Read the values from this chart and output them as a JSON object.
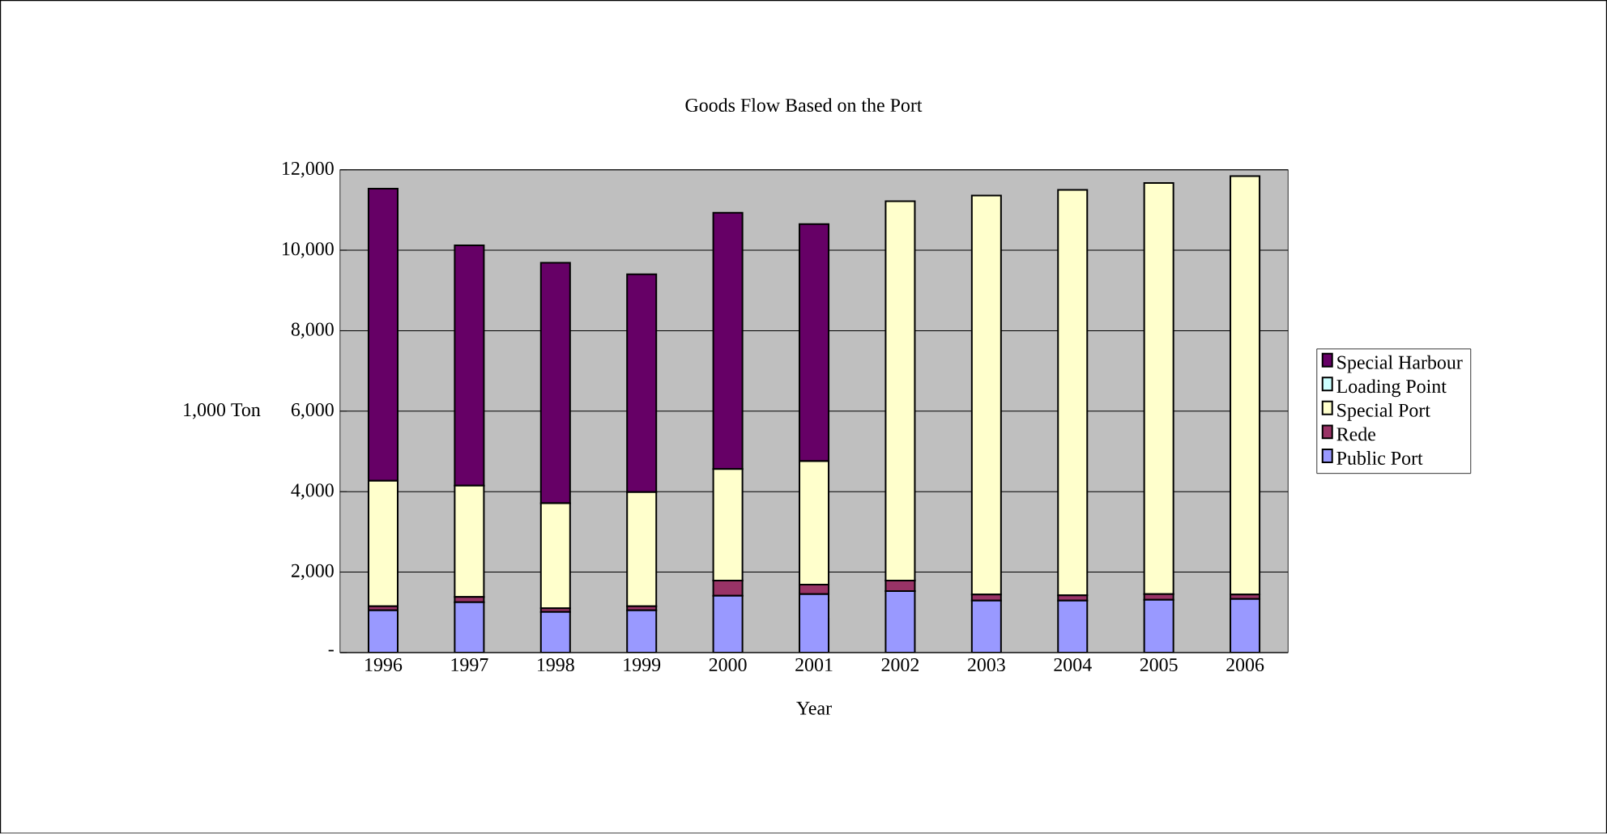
{
  "chart_data": {
    "type": "bar",
    "title": "Goods Flow Based on the Port",
    "xlabel": "Year",
    "ylabel": "1,000 Ton",
    "categories": [
      "1996",
      "1997",
      "1998",
      "1999",
      "2000",
      "2001",
      "2002",
      "2003",
      "2004",
      "2005",
      "2006"
    ],
    "stacked": true,
    "series": [
      {
        "name": "Public Port",
        "color": "#9999ff",
        "values": [
          1050,
          1250,
          1010,
          1050,
          1410,
          1450,
          1530,
          1290,
          1290,
          1310,
          1330
        ]
      },
      {
        "name": "Rede",
        "color": "#993366",
        "values": [
          100,
          130,
          90,
          100,
          380,
          240,
          260,
          150,
          130,
          140,
          110
        ]
      },
      {
        "name": "Special Port",
        "color": "#ffffcc",
        "values": [
          3120,
          2770,
          2610,
          2840,
          2770,
          3070,
          9430,
          9920,
          10080,
          10220,
          10400
        ]
      },
      {
        "name": "Loading Point",
        "color": "#ccffff",
        "values": [
          0,
          0,
          0,
          0,
          0,
          0,
          0,
          0,
          0,
          0,
          0
        ]
      },
      {
        "name": "Special Harbour",
        "color": "#660066",
        "values": [
          7260,
          5970,
          5980,
          5410,
          6370,
          5890,
          null,
          null,
          null,
          null,
          null
        ]
      }
    ],
    "ylim": [
      0,
      12000
    ],
    "yticks": [
      {
        "value": 0,
        "label": "-"
      },
      {
        "value": 2000,
        "label": "2,000"
      },
      {
        "value": 4000,
        "label": "4,000"
      },
      {
        "value": 6000,
        "label": "6,000"
      },
      {
        "value": 8000,
        "label": "8,000"
      },
      {
        "value": 10000,
        "label": "10,000"
      },
      {
        "value": 12000,
        "label": "12,000"
      }
    ],
    "grid": "y",
    "legend": "right"
  }
}
